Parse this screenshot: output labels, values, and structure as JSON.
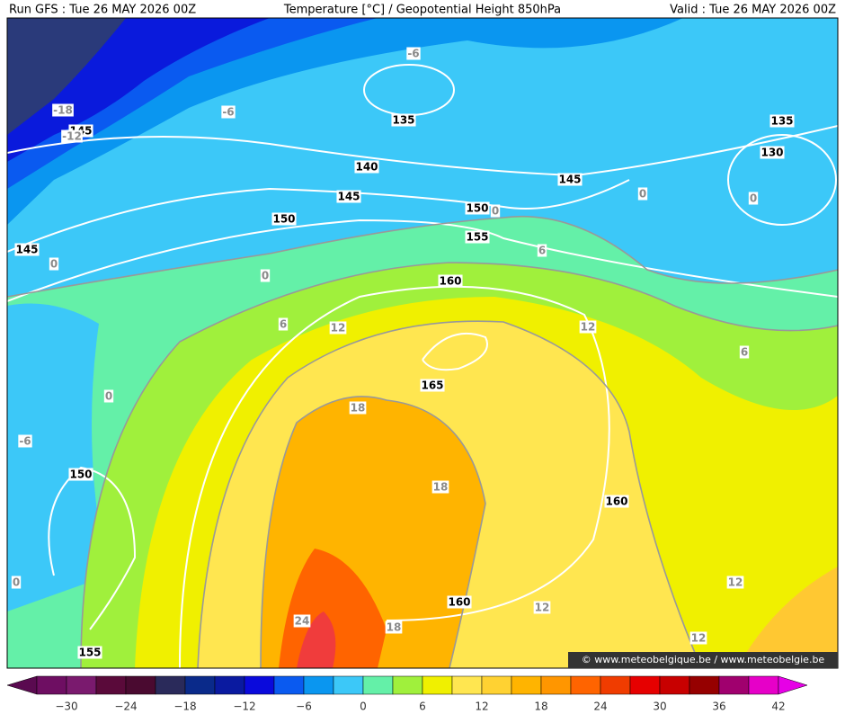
{
  "header": {
    "left": "Run GFS : Tue 26 MAY 2026 00Z",
    "center": "Temperature [°C] / Geopotential Height 850hPa",
    "right": "Valid : Tue 26 MAY 2026 00Z"
  },
  "height_labels": [
    "145",
    "135",
    "140",
    "145",
    "150",
    "145",
    "150",
    "155",
    "160",
    "145",
    "135",
    "130",
    "165",
    "150",
    "160",
    "160",
    "155"
  ],
  "temperature_labels": [
    "-6",
    "-18",
    "-12",
    "-6",
    "0",
    "0",
    "0",
    "6",
    "0",
    "0",
    "12",
    "12",
    "6",
    "6",
    "0",
    "18",
    "-6",
    "18",
    "12",
    "0",
    "12",
    "24",
    "18",
    "12"
  ],
  "colorbar": {
    "ticks": [
      "−30",
      "−24",
      "−18",
      "−12",
      "−6",
      "0",
      "6",
      "12",
      "18",
      "24",
      "30",
      "36",
      "42"
    ]
  },
  "footer": {
    "credit": "© www.meteobelgique.be / www.meteobelgie.be"
  }
}
